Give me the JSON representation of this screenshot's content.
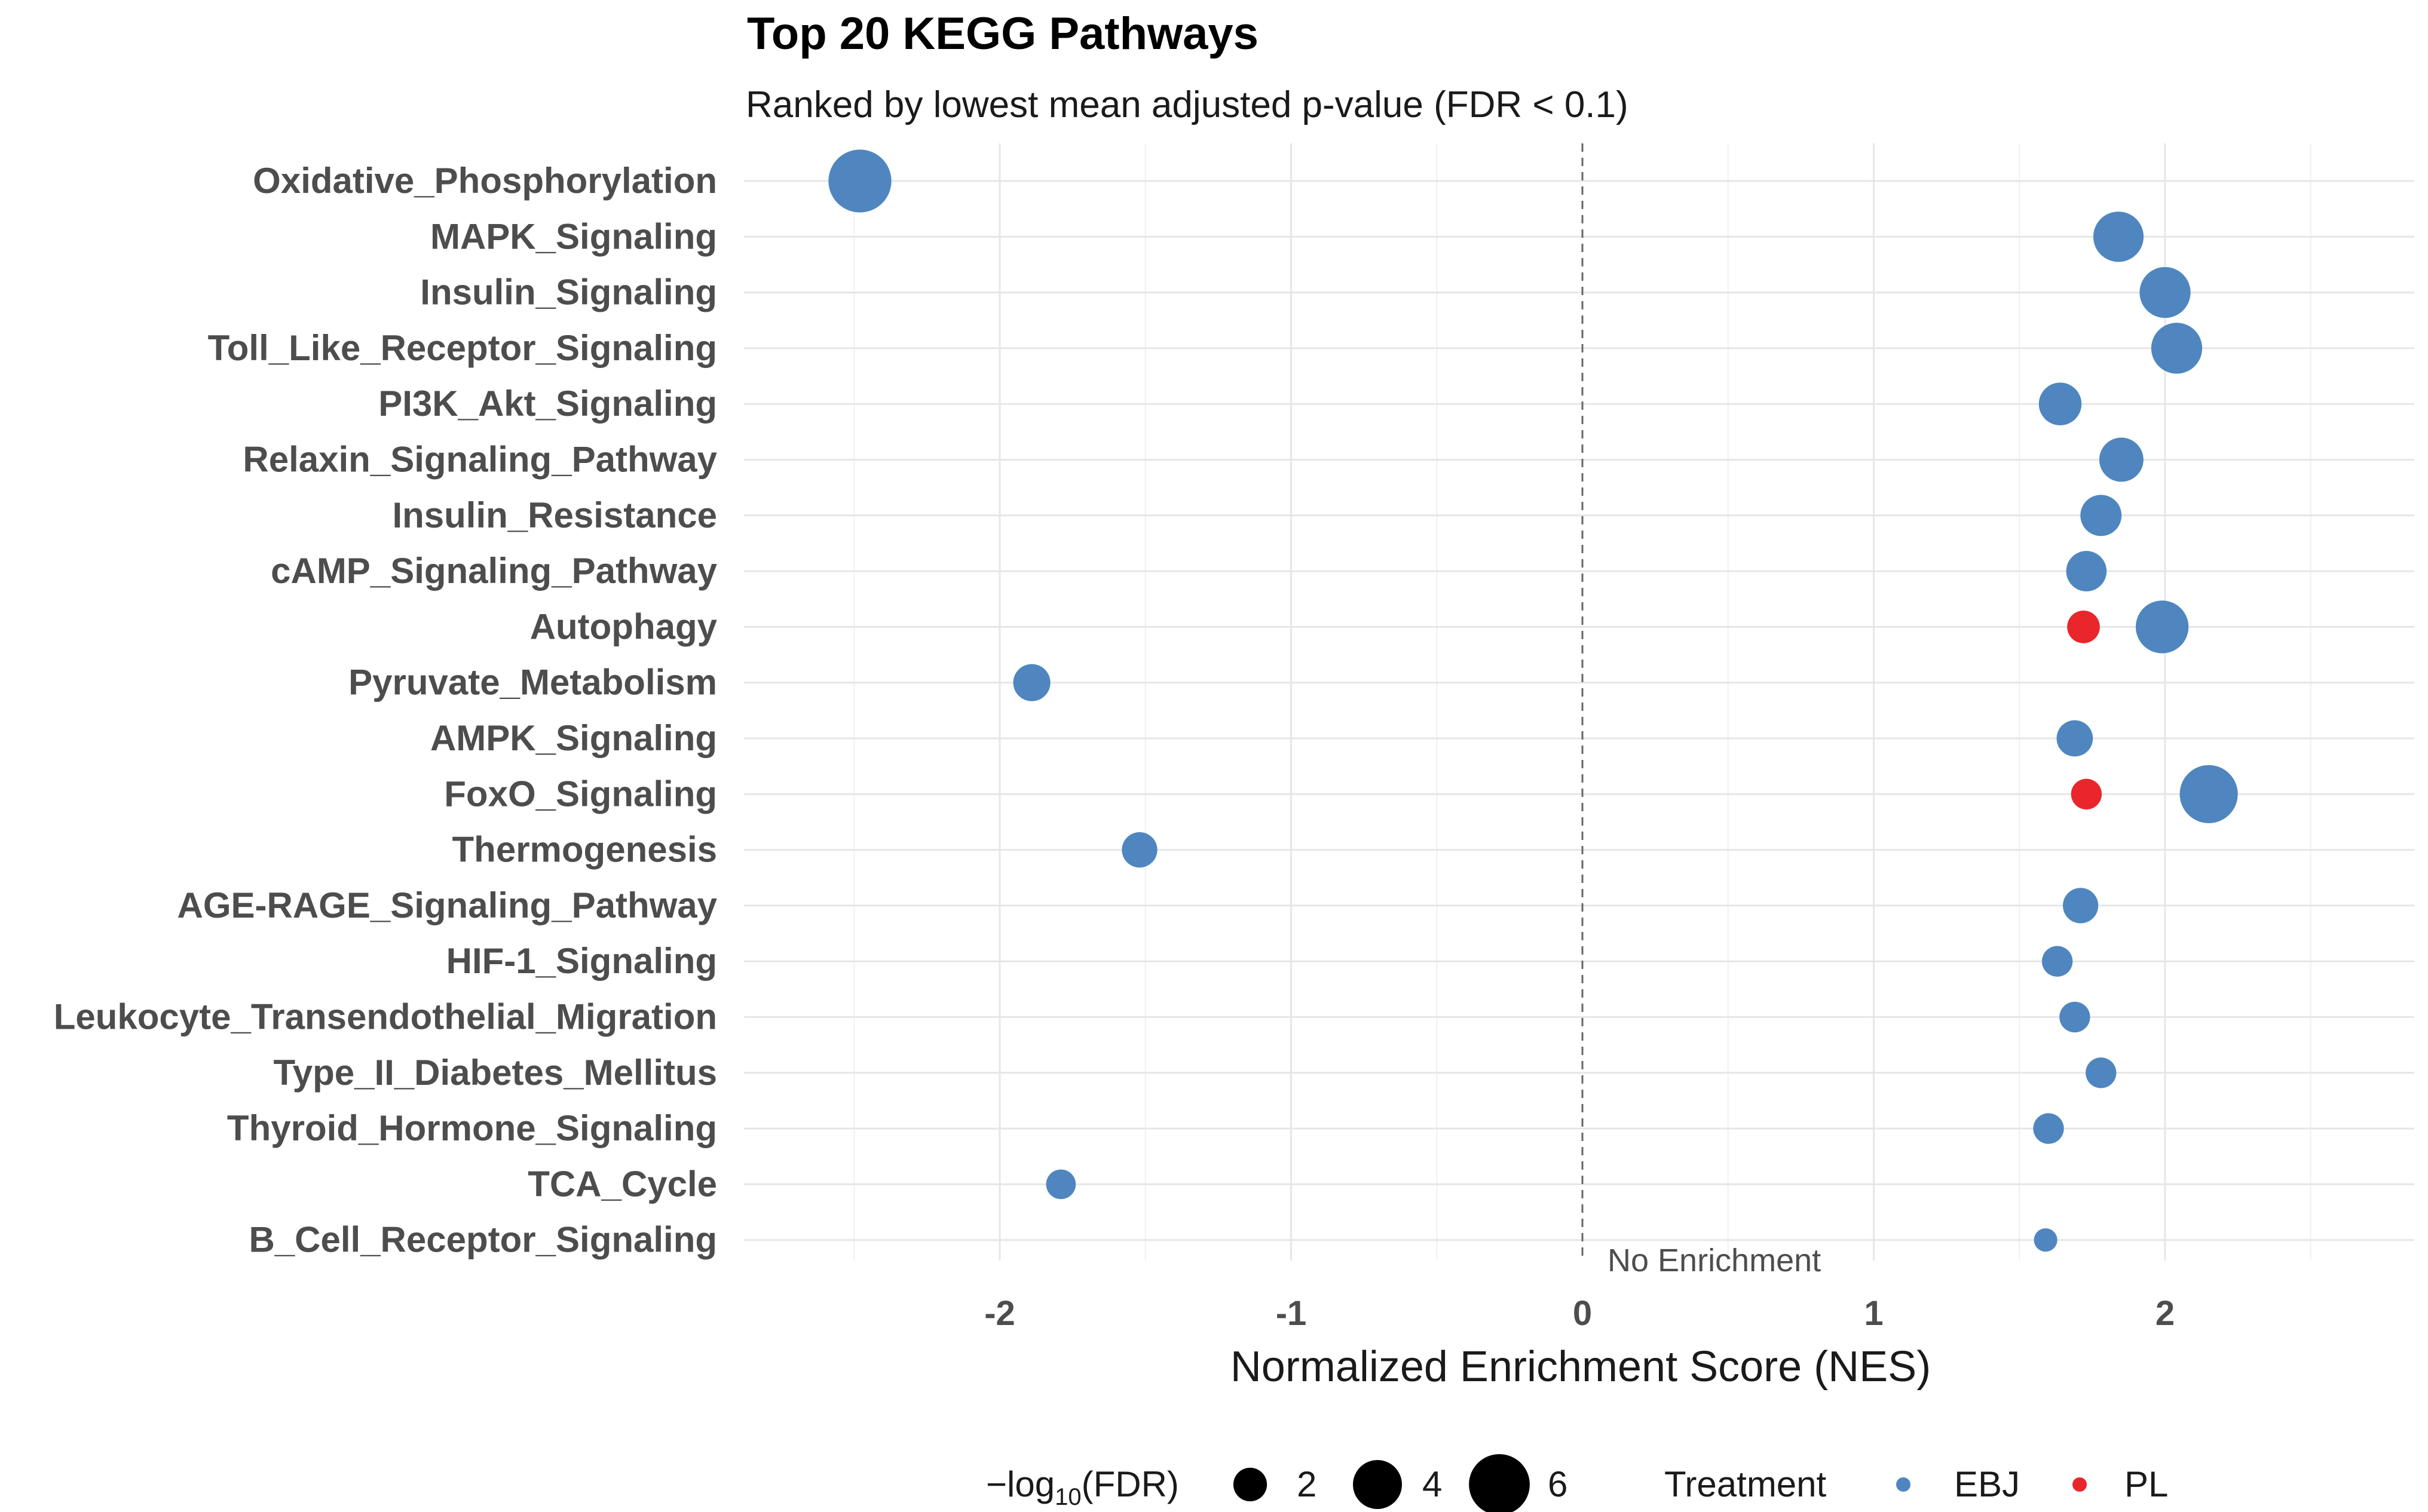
{
  "chart_data": {
    "type": "scatter",
    "title": "Top 20 KEGG Pathways",
    "subtitle": "Ranked by lowest mean adjusted p-value (FDR < 0.1)",
    "xlabel": "Normalized Enrichment Score (NES)",
    "ylabel": "",
    "xlim": [
      -2.85,
      2.85
    ],
    "xticks": [
      -2,
      -1,
      0,
      1,
      2
    ],
    "xtick_labels": [
      "-2",
      "-1",
      "0",
      "1",
      "2"
    ],
    "grid": true,
    "reference_line": {
      "x": 0,
      "style": "dashed",
      "label": "No Enrichment"
    },
    "categories": [
      "Oxidative_Phosphorylation",
      "MAPK_Signaling",
      "Insulin_Signaling",
      "Toll_Like_Receptor_Signaling",
      "PI3K_Akt_Signaling",
      "Relaxin_Signaling_Pathway",
      "Insulin_Resistance",
      "cAMP_Signaling_Pathway",
      "Autophagy",
      "Pyruvate_Metabolism",
      "AMPK_Signaling",
      "FoxO_Signaling",
      "Thermogenesis",
      "AGE-RAGE_Signaling_Pathway",
      "HIF-1_Signaling",
      "Leukocyte_Transendothelial_Migration",
      "Type_II_Diabetes_Mellitus",
      "Thyroid_Hormone_Signaling",
      "TCA_Cycle",
      "B_Cell_Receptor_Signaling"
    ],
    "series": [
      {
        "name": "EBJ",
        "color": "#4f86bf",
        "points": [
          {
            "pathway": "Oxidative_Phosphorylation",
            "nes": -2.48,
            "neglog10_fdr": 6.4
          },
          {
            "pathway": "MAPK_Signaling",
            "nes": 1.84,
            "neglog10_fdr": 4.2
          },
          {
            "pathway": "Insulin_Signaling",
            "nes": 2.0,
            "neglog10_fdr": 4.3
          },
          {
            "pathway": "Toll_Like_Receptor_Signaling",
            "nes": 2.04,
            "neglog10_fdr": 4.3
          },
          {
            "pathway": "PI3K_Akt_Signaling",
            "nes": 1.64,
            "neglog10_fdr": 3.1
          },
          {
            "pathway": "Relaxin_Signaling_Pathway",
            "nes": 1.85,
            "neglog10_fdr": 3.3
          },
          {
            "pathway": "Insulin_Resistance",
            "nes": 1.78,
            "neglog10_fdr": 2.9
          },
          {
            "pathway": "cAMP_Signaling_Pathway",
            "nes": 1.73,
            "neglog10_fdr": 2.8
          },
          {
            "pathway": "Autophagy",
            "nes": 1.99,
            "neglog10_fdr": 4.6
          },
          {
            "pathway": "Pyruvate_Metabolism",
            "nes": -1.89,
            "neglog10_fdr": 2.4
          },
          {
            "pathway": "AMPK_Signaling",
            "nes": 1.69,
            "neglog10_fdr": 2.3
          },
          {
            "pathway": "FoxO_Signaling",
            "nes": 2.15,
            "neglog10_fdr": 5.5
          },
          {
            "pathway": "Thermogenesis",
            "nes": -1.52,
            "neglog10_fdr": 2.2
          },
          {
            "pathway": "AGE-RAGE_Signaling_Pathway",
            "nes": 1.71,
            "neglog10_fdr": 2.2
          },
          {
            "pathway": "HIF-1_Signaling",
            "nes": 1.63,
            "neglog10_fdr": 1.7
          },
          {
            "pathway": "Leukocyte_Transendothelial_Migration",
            "nes": 1.69,
            "neglog10_fdr": 1.7
          },
          {
            "pathway": "Type_II_Diabetes_Mellitus",
            "nes": 1.78,
            "neglog10_fdr": 1.7
          },
          {
            "pathway": "Thyroid_Hormone_Signaling",
            "nes": 1.6,
            "neglog10_fdr": 1.7
          },
          {
            "pathway": "TCA_Cycle",
            "nes": -1.79,
            "neglog10_fdr": 1.6
          },
          {
            "pathway": "B_Cell_Receptor_Signaling",
            "nes": 1.59,
            "neglog10_fdr": 1.05
          }
        ]
      },
      {
        "name": "PL",
        "color": "#e8262c",
        "points": [
          {
            "pathway": "Autophagy",
            "nes": 1.72,
            "neglog10_fdr": 1.9
          },
          {
            "pathway": "FoxO_Signaling",
            "nes": 1.73,
            "neglog10_fdr": 1.7
          }
        ]
      }
    ],
    "legend": {
      "placement": "bottom",
      "size_title_prefix": "−log",
      "size_title_subscript": "10",
      "size_title_suffix": "(FDR)",
      "size_breaks": [
        2,
        4,
        6
      ],
      "size_labels": [
        "2",
        "4",
        "6"
      ],
      "color_title": "Treatment",
      "color_entries": [
        "EBJ",
        "PL"
      ]
    }
  }
}
